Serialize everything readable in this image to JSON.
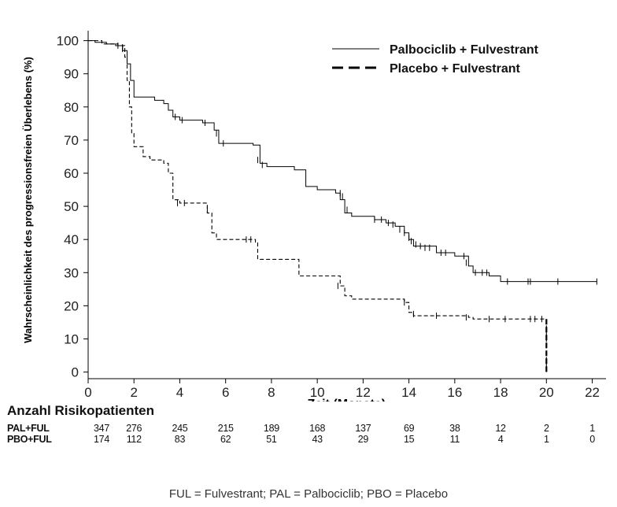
{
  "chart_data": {
    "type": "line",
    "title": "",
    "xlabel": "Zeit (Monate)",
    "ylabel": "Wahrscheinlichkeit des progressionsfreien Überlebens (%)",
    "xlim": [
      0,
      22.6
    ],
    "ylim": [
      -2,
      103
    ],
    "xticks": [
      0,
      2,
      4,
      6,
      8,
      10,
      12,
      14,
      16,
      18,
      20,
      22
    ],
    "yticks": [
      0,
      10,
      20,
      30,
      40,
      50,
      60,
      70,
      80,
      90,
      100
    ],
    "grid": false,
    "legend_position": "top-right",
    "series": [
      {
        "name": "Palbociclib + Fulvestrant",
        "style": "solid",
        "color": "#000000",
        "steps": [
          [
            0,
            100
          ],
          [
            0.3,
            99.5
          ],
          [
            0.8,
            99
          ],
          [
            1.2,
            98.5
          ],
          [
            1.5,
            97
          ],
          [
            1.7,
            93
          ],
          [
            1.85,
            88
          ],
          [
            2,
            83
          ],
          [
            2.9,
            82
          ],
          [
            3.3,
            81
          ],
          [
            3.5,
            79
          ],
          [
            3.7,
            77
          ],
          [
            4,
            76
          ],
          [
            5,
            75.2
          ],
          [
            5.5,
            73
          ],
          [
            5.7,
            69
          ],
          [
            6.5,
            69
          ],
          [
            7.2,
            68.5
          ],
          [
            7.5,
            63
          ],
          [
            7.8,
            62
          ],
          [
            9,
            61
          ],
          [
            9.5,
            56
          ],
          [
            10,
            55
          ],
          [
            10.8,
            54
          ],
          [
            11,
            52
          ],
          [
            11.2,
            48
          ],
          [
            11.5,
            47
          ],
          [
            12.5,
            46
          ],
          [
            13,
            45
          ],
          [
            13.4,
            44
          ],
          [
            13.8,
            42
          ],
          [
            14,
            40
          ],
          [
            14.2,
            38
          ],
          [
            15.2,
            36
          ],
          [
            16,
            35
          ],
          [
            16.6,
            32
          ],
          [
            16.8,
            30
          ],
          [
            17.5,
            29
          ],
          [
            18,
            27.3
          ],
          [
            22.2,
            27.3
          ]
        ],
        "censors": [
          [
            1.3,
            98.5
          ],
          [
            1.5,
            97.5
          ],
          [
            3.8,
            77
          ],
          [
            4.1,
            76
          ],
          [
            5.1,
            75.2
          ],
          [
            5.6,
            72
          ],
          [
            5.9,
            69
          ],
          [
            7.4,
            64
          ],
          [
            7.6,
            62.5
          ],
          [
            11,
            54
          ],
          [
            11.1,
            53
          ],
          [
            11.3,
            49
          ],
          [
            12.5,
            46
          ],
          [
            12.8,
            46
          ],
          [
            13.1,
            45
          ],
          [
            13.3,
            44.5
          ],
          [
            13.6,
            43
          ],
          [
            13.8,
            42
          ],
          [
            14,
            40.5
          ],
          [
            14.1,
            39.5
          ],
          [
            14.3,
            38.5
          ],
          [
            14.5,
            38
          ],
          [
            14.7,
            37.5
          ],
          [
            14.9,
            37.5
          ],
          [
            15.4,
            36
          ],
          [
            15.6,
            36
          ],
          [
            16.4,
            35
          ],
          [
            16.5,
            33
          ],
          [
            16.9,
            30
          ],
          [
            17.2,
            30
          ],
          [
            17.4,
            30
          ],
          [
            18.3,
            27.3
          ],
          [
            19.2,
            27.3
          ],
          [
            19.3,
            27.3
          ],
          [
            20.5,
            27.3
          ],
          [
            22.2,
            27.3
          ]
        ]
      },
      {
        "name": "Placebo + Fulvestrant",
        "style": "dashed",
        "color": "#000000",
        "steps": [
          [
            0,
            100
          ],
          [
            0.6,
            99
          ],
          [
            1.3,
            98.5
          ],
          [
            1.6,
            95
          ],
          [
            1.7,
            88
          ],
          [
            1.8,
            80
          ],
          [
            1.9,
            72
          ],
          [
            2,
            68
          ],
          [
            2.4,
            65
          ],
          [
            2.7,
            64
          ],
          [
            3.3,
            63
          ],
          [
            3.5,
            60
          ],
          [
            3.7,
            52
          ],
          [
            4,
            51
          ],
          [
            5.2,
            48
          ],
          [
            5.4,
            42
          ],
          [
            5.6,
            40
          ],
          [
            7.3,
            39
          ],
          [
            7.4,
            34
          ],
          [
            9.2,
            29
          ],
          [
            11,
            26
          ],
          [
            11.2,
            23
          ],
          [
            11.5,
            22
          ],
          [
            13.8,
            21
          ],
          [
            14,
            18
          ],
          [
            14.2,
            17
          ],
          [
            16.6,
            16.5
          ],
          [
            16.8,
            16
          ],
          [
            20,
            16
          ],
          [
            20,
            0
          ]
        ],
        "censors": [
          [
            1.5,
            98
          ],
          [
            3.9,
            51
          ],
          [
            4.2,
            51
          ],
          [
            5.2,
            49
          ],
          [
            6.9,
            40
          ],
          [
            7.1,
            40
          ],
          [
            10.9,
            26
          ],
          [
            13.8,
            21
          ],
          [
            14.2,
            17.5
          ],
          [
            15.2,
            17
          ],
          [
            16.5,
            16.5
          ],
          [
            17.5,
            16
          ],
          [
            18.2,
            16
          ],
          [
            19.3,
            16
          ],
          [
            19.5,
            16
          ],
          [
            19.8,
            16
          ]
        ]
      }
    ]
  },
  "risk_table": {
    "title": "Anzahl Risikopatienten",
    "times": [
      0,
      2,
      4,
      6,
      8,
      10,
      12,
      14,
      16,
      18,
      20,
      22
    ],
    "rows": [
      {
        "label": "PAL+FUL",
        "values": [
          "347",
          "276",
          "245",
          "215",
          "189",
          "168",
          "137",
          "69",
          "38",
          "12",
          "2",
          "1"
        ]
      },
      {
        "label": "PBO+FUL",
        "values": [
          "174",
          "112",
          "83",
          "62",
          "51",
          "43",
          "29",
          "15",
          "11",
          "4",
          "1",
          "0"
        ]
      }
    ]
  },
  "footnote": "FUL = Fulvestrant; PAL = Palbociclib; PBO = Placebo"
}
